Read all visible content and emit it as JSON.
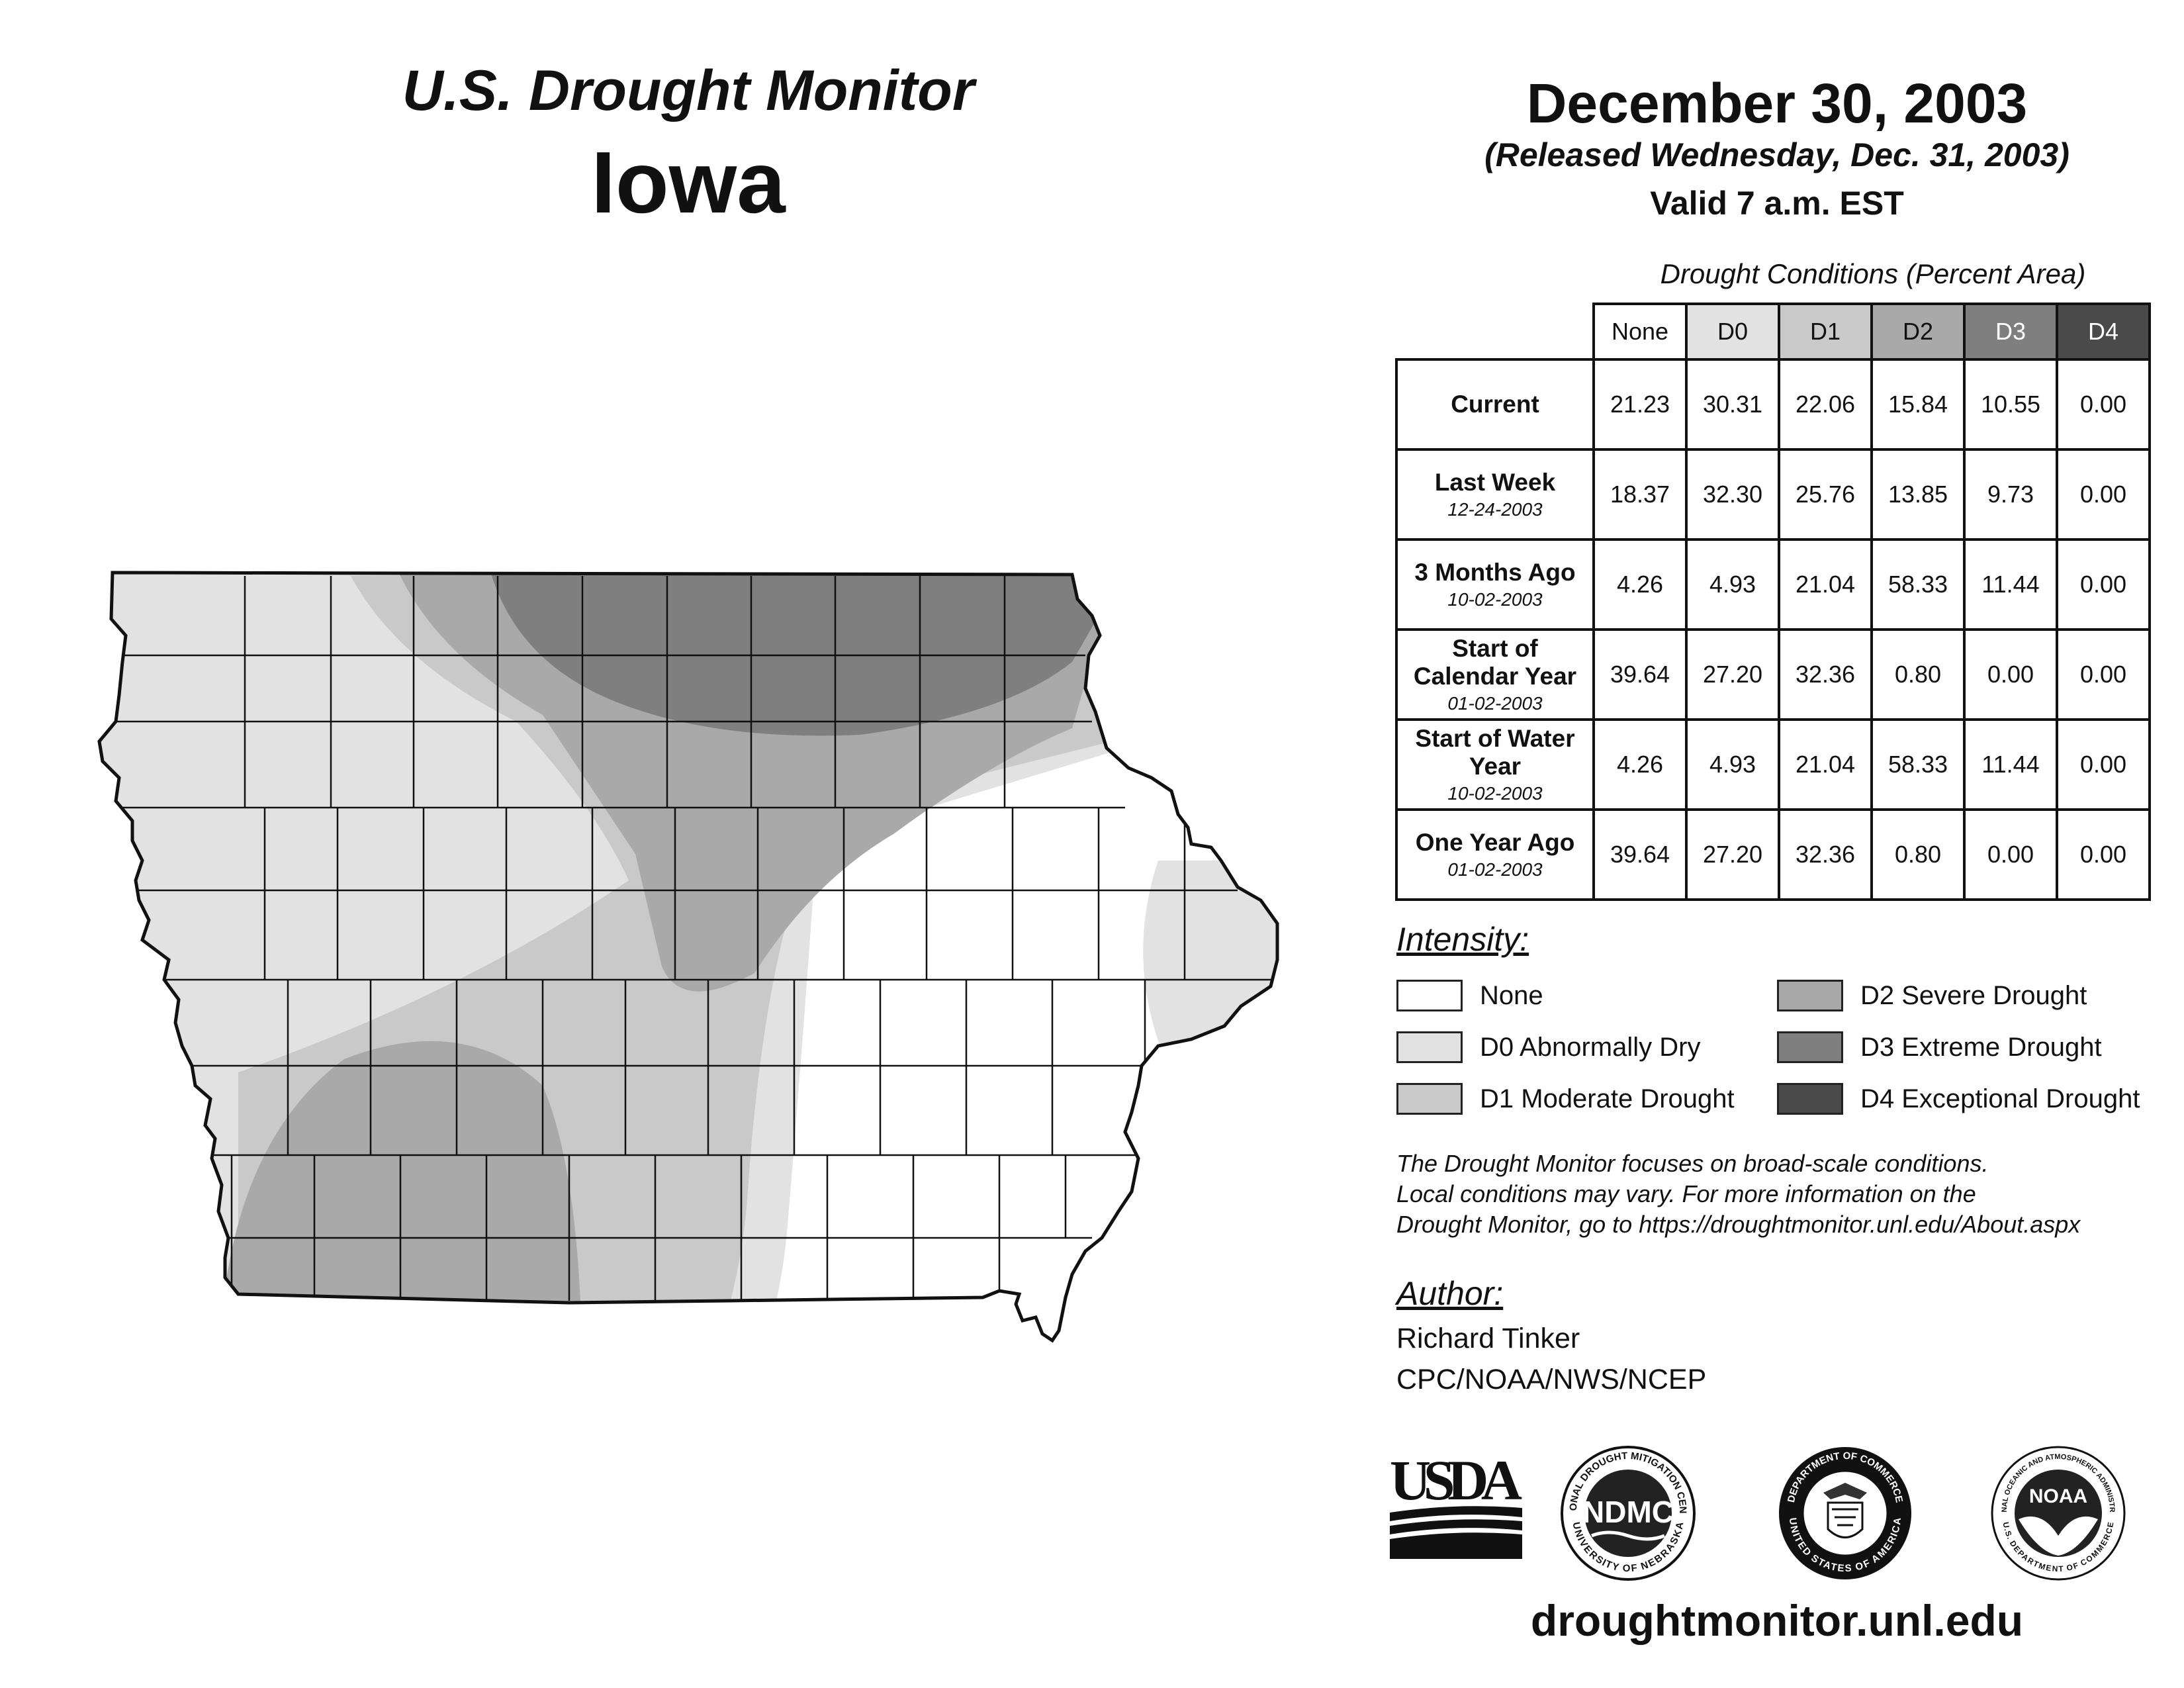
{
  "header": {
    "title": "U.S. Drought Monitor",
    "state": "Iowa",
    "date": "December 30, 2003",
    "released": "(Released Wednesday, Dec. 31, 2003)",
    "valid": "Valid 7 a.m. EST"
  },
  "table": {
    "caption": "Drought Conditions (Percent Area)",
    "columns": [
      "None",
      "D0",
      "D1",
      "D2",
      "D3",
      "D4"
    ],
    "column_colors": [
      "#ffffff",
      "#e2e2e2",
      "#c9c9c9",
      "#a9a9a9",
      "#7f7f7f",
      "#4a4a4a"
    ],
    "rows": [
      {
        "label": "Current",
        "date": "",
        "values": [
          "21.23",
          "30.31",
          "22.06",
          "15.84",
          "10.55",
          "0.00"
        ]
      },
      {
        "label": "Last Week",
        "date": "12-24-2003",
        "values": [
          "18.37",
          "32.30",
          "25.76",
          "13.85",
          "9.73",
          "0.00"
        ]
      },
      {
        "label": "3 Months Ago",
        "date": "10-02-2003",
        "values": [
          "4.26",
          "4.93",
          "21.04",
          "58.33",
          "11.44",
          "0.00"
        ]
      },
      {
        "label": "Start of Calendar Year",
        "date": "01-02-2003",
        "values": [
          "39.64",
          "27.20",
          "32.36",
          "0.80",
          "0.00",
          "0.00"
        ]
      },
      {
        "label": "Start of Water Year",
        "date": "10-02-2003",
        "values": [
          "4.26",
          "4.93",
          "21.04",
          "58.33",
          "11.44",
          "0.00"
        ]
      },
      {
        "label": "One Year Ago",
        "date": "01-02-2003",
        "values": [
          "39.64",
          "27.20",
          "32.36",
          "0.80",
          "0.00",
          "0.00"
        ]
      }
    ]
  },
  "legend": {
    "heading": "Intensity:",
    "items": [
      {
        "label": "None",
        "color": "#ffffff"
      },
      {
        "label": "D0 Abnormally Dry",
        "color": "#e2e2e2"
      },
      {
        "label": "D1 Moderate Drought",
        "color": "#c9c9c9"
      },
      {
        "label": "D2 Severe Drought",
        "color": "#a9a9a9"
      },
      {
        "label": "D3 Extreme Drought",
        "color": "#7f7f7f"
      },
      {
        "label": "D4 Exceptional Drought",
        "color": "#4a4a4a"
      }
    ]
  },
  "note": {
    "line1": "The Drought Monitor focuses on broad-scale conditions.",
    "line2": "Local conditions may vary. For more information on the",
    "line3": "Drought Monitor, go to https://droughtmonitor.unl.edu/About.aspx"
  },
  "author": {
    "heading": "Author:",
    "name": "Richard Tinker",
    "org": "CPC/NOAA/NWS/NCEP"
  },
  "logos": {
    "usda": "USDA",
    "ndmc": "NDMC",
    "ndmc_ring_top": "NATIONAL DROUGHT MITIGATION CENTER",
    "ndmc_ring_bottom": "UNIVERSITY OF NEBRASKA",
    "doc_ring_top": "DEPARTMENT OF COMMERCE",
    "doc_ring_bottom": "UNITED STATES OF AMERICA",
    "noaa": "NOAA",
    "noaa_ring_top": "NATIONAL OCEANIC AND ATMOSPHERIC ADMINISTRATION",
    "noaa_ring_bottom": "U.S. DEPARTMENT OF COMMERCE"
  },
  "footer": {
    "site": "droughtmonitor.unl.edu"
  }
}
